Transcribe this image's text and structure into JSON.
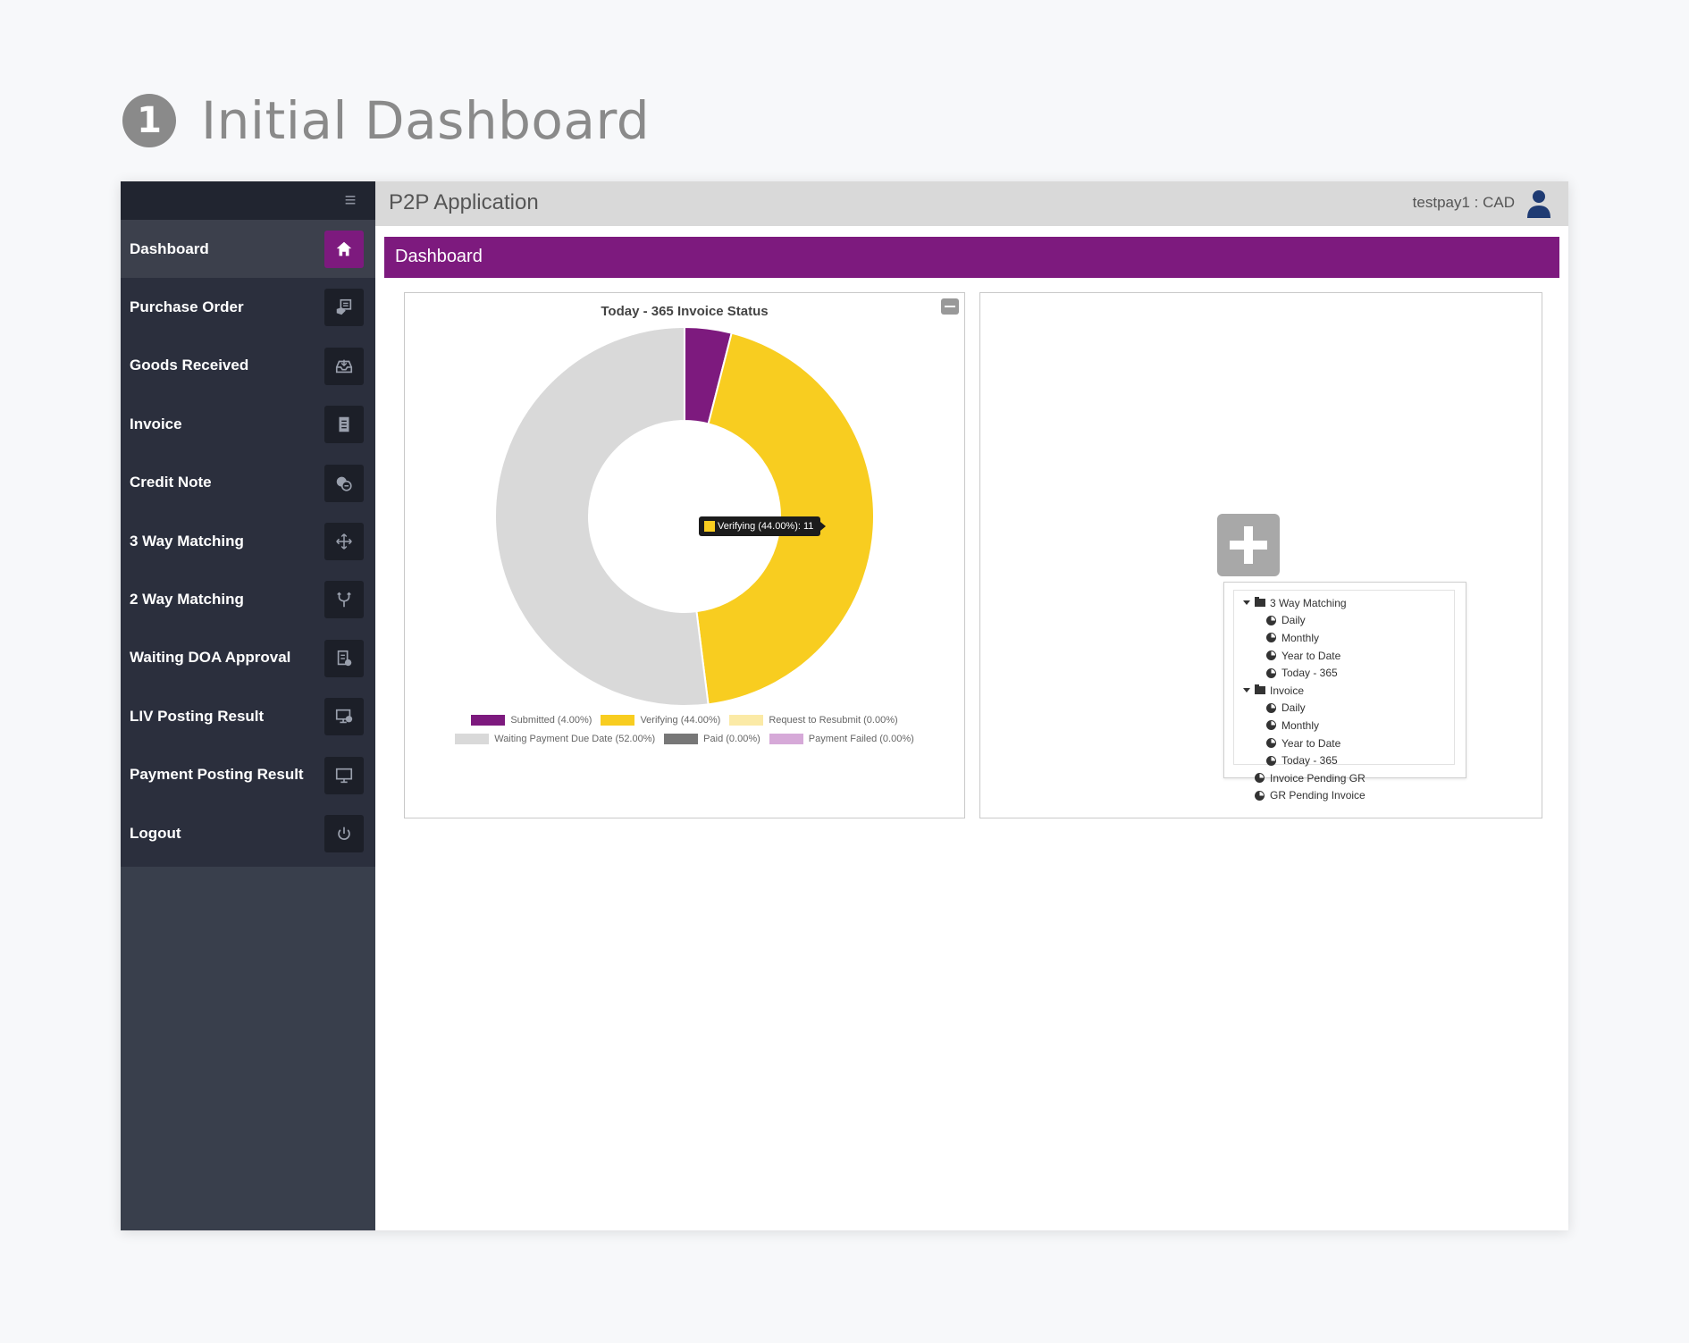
{
  "heading": {
    "step_number": "1",
    "title": "Initial Dashboard"
  },
  "header": {
    "app_title": "P2P Application",
    "user_label": "testpay1 : CAD"
  },
  "page": {
    "title": "Dashboard"
  },
  "sidebar": {
    "items": [
      {
        "label": "Dashboard",
        "icon": "home-icon"
      },
      {
        "label": "Purchase Order",
        "icon": "purchase-order-icon"
      },
      {
        "label": "Goods Received",
        "icon": "inbox-icon"
      },
      {
        "label": "Invoice",
        "icon": "document-icon"
      },
      {
        "label": "Credit Note",
        "icon": "coin-icon"
      },
      {
        "label": "3 Way Matching",
        "icon": "move-arrows-icon"
      },
      {
        "label": "2 Way Matching",
        "icon": "fork-icon"
      },
      {
        "label": "Waiting DOA Approval",
        "icon": "approval-doc-icon"
      },
      {
        "label": "LIV Posting Result",
        "icon": "monitor-check-icon"
      },
      {
        "label": "Payment Posting Result",
        "icon": "monitor-icon"
      },
      {
        "label": "Logout",
        "icon": "power-icon"
      }
    ]
  },
  "chart_data": {
    "type": "pie",
    "title": "Today - 365 Invoice Status",
    "donut": true,
    "series": [
      {
        "name": "Submitted",
        "label": "Submitted (4.00%)",
        "value": 4.0,
        "color": "#7d1a7e"
      },
      {
        "name": "Verifying",
        "label": "Verifying (44.00%)",
        "value": 44.0,
        "color": "#f8cd20"
      },
      {
        "name": "Request to Resubmit",
        "label": "Request to Resubmit (0.00%)",
        "value": 0.0,
        "color": "#fbeaa6"
      },
      {
        "name": "Waiting Payment Due Date",
        "label": "Waiting Payment Due Date (52.00%)",
        "value": 52.0,
        "color": "#d9d9d9"
      },
      {
        "name": "Paid",
        "label": "Paid (0.00%)",
        "value": 0.0,
        "color": "#777777"
      },
      {
        "name": "Payment Failed",
        "label": "Payment Failed (0.00%)",
        "value": 0.0,
        "color": "#d6a9d8"
      }
    ],
    "tooltip": {
      "text": "Verifying (44.00%): 11"
    },
    "legend_placement": "bottom"
  },
  "widget_tree": {
    "nodes": [
      {
        "label": "3 Way Matching",
        "type": "folder",
        "level": 0
      },
      {
        "label": "Daily",
        "type": "report",
        "level": 1
      },
      {
        "label": "Monthly",
        "type": "report",
        "level": 1
      },
      {
        "label": "Year to Date",
        "type": "report",
        "level": 1
      },
      {
        "label": "Today - 365",
        "type": "report",
        "level": 1
      },
      {
        "label": "Invoice",
        "type": "folder",
        "level": 0
      },
      {
        "label": "Daily",
        "type": "report",
        "level": 1
      },
      {
        "label": "Monthly",
        "type": "report",
        "level": 1
      },
      {
        "label": "Year to Date",
        "type": "report",
        "level": 1
      },
      {
        "label": "Today - 365",
        "type": "report",
        "level": 1
      },
      {
        "label": "Invoice Pending GR",
        "type": "report",
        "level": 0
      },
      {
        "label": "GR Pending Invoice",
        "type": "report",
        "level": 0
      }
    ]
  },
  "colors": {
    "brand": "#7d1a7e",
    "sidebar": "#2b2f3d",
    "topbar": "#d9d9d9"
  }
}
